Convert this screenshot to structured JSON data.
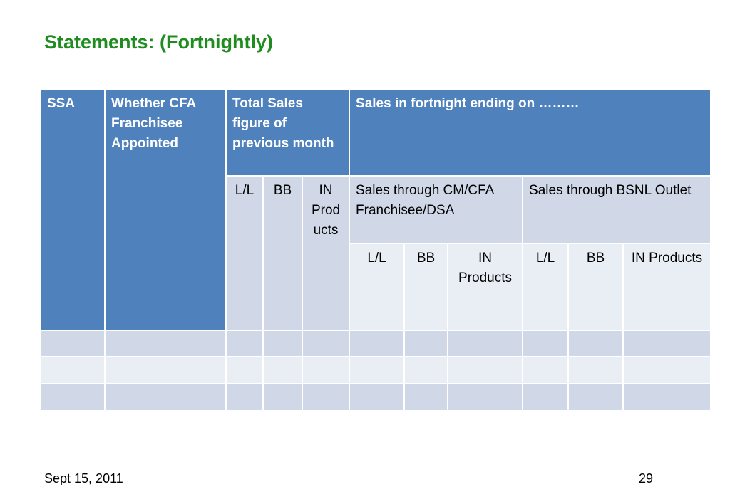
{
  "title": "Statements: (Fortnightly)",
  "table": {
    "headers": {
      "ssa": "SSA",
      "cfa": "Whether CFA Franchisee Appointed",
      "total_sales": "Total Sales figure of previous month",
      "fortnight": "Sales in fortnight ending on ………"
    },
    "subheaders": {
      "total_ll": "L/L",
      "total_bb": "BB",
      "total_in": "IN Products",
      "through_cm": "Sales through CM/CFA Franchisee/DSA",
      "through_bsnl": "Sales through BSNL Outlet"
    },
    "subsubheaders": {
      "cm_ll": "L/L",
      "cm_bb": "BB",
      "cm_in": "IN Products",
      "bsnl_ll": "L/L",
      "bsnl_bb": "BB",
      "bsnl_in": "IN Products"
    },
    "empty_rows": 3
  },
  "footer": {
    "date": "Sept 15, 2011",
    "page": "29"
  }
}
